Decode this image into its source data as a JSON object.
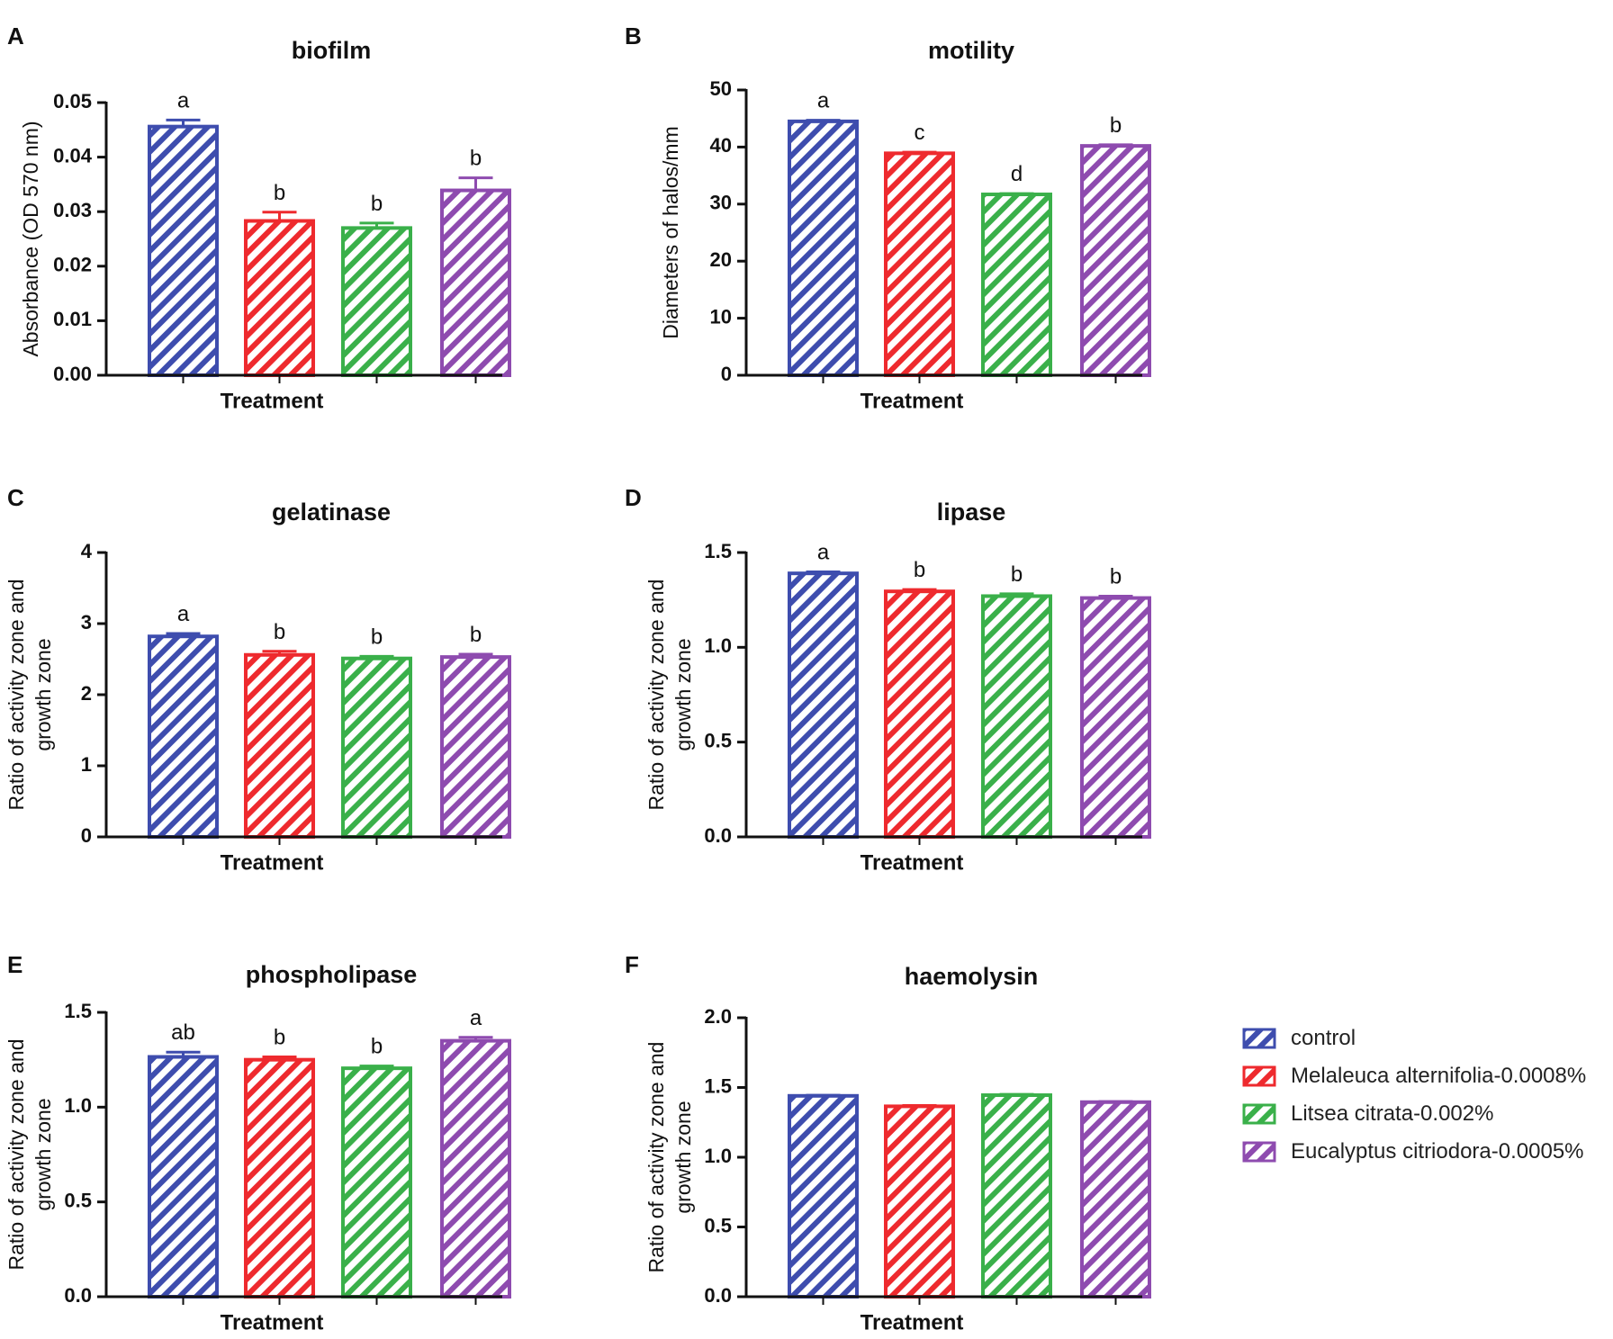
{
  "figure": {
    "treatments": [
      "control",
      "Melaleuca alternifolia-0.0008%",
      "Litsea citrata-0.002%",
      "Eucalyptus citriodora-0.0005%"
    ],
    "colors": [
      "#3E4DAE",
      "#EE2A2E",
      "#3AB04A",
      "#8E4BAF"
    ]
  },
  "legend": {
    "items": [
      {
        "label": "control",
        "color": "#3E4DAE"
      },
      {
        "label": "Melaleuca alternifolia-0.0008%",
        "color": "#EE2A2E"
      },
      {
        "label": "Litsea citrata-0.002%",
        "color": "#3AB04A"
      },
      {
        "label": "Eucalyptus citriodora-0.0005%",
        "color": "#8E4BAF"
      }
    ]
  },
  "chart_data": [
    {
      "panel": "A",
      "type": "bar",
      "title": "biofilm",
      "xlabel": "Treatment",
      "ylabel": "Absorbance (OD 570 nm)",
      "ylim": [
        0,
        0.05
      ],
      "yticks": [
        "0.00",
        "0.01",
        "0.02",
        "0.03",
        "0.04",
        "0.05"
      ],
      "categories": [
        "control",
        "Melaleuca alternifolia-0.0008%",
        "Litsea citrata-0.002%",
        "Eucalyptus citriodora-0.0005%"
      ],
      "values": [
        0.0456,
        0.0283,
        0.027,
        0.0339
      ],
      "errors": [
        0.0012,
        0.0016,
        0.0009,
        0.0023
      ],
      "letters": [
        "a",
        "b",
        "b",
        "b"
      ]
    },
    {
      "panel": "B",
      "type": "bar",
      "title": "motility",
      "xlabel": "Treatment",
      "ylabel": "Diameters of  halos/mm",
      "ylim": [
        0,
        50
      ],
      "yticks": [
        "0",
        "10",
        "20",
        "30",
        "40",
        "50"
      ],
      "categories": [
        "control",
        "Melaleuca alternifolia-0.0008%",
        "Litsea citrata-0.002%",
        "Eucalyptus citriodora-0.0005%"
      ],
      "values": [
        44.5,
        38.9,
        31.7,
        40.2
      ],
      "errors": [
        0.2,
        0.2,
        0.15,
        0.2
      ],
      "letters": [
        "a",
        "c",
        "d",
        "b"
      ]
    },
    {
      "panel": "C",
      "type": "bar",
      "title": "gelatinase",
      "xlabel": "Treatment",
      "ylabel": [
        "Ratio of activity zone and",
        "growth zone"
      ],
      "ylim": [
        0,
        4
      ],
      "yticks": [
        "0",
        "1",
        "2",
        "3",
        "4"
      ],
      "categories": [
        "control",
        "Melaleuca alternifolia-0.0008%",
        "Litsea citrata-0.002%",
        "Eucalyptus citriodora-0.0005%"
      ],
      "values": [
        2.82,
        2.56,
        2.51,
        2.53
      ],
      "errors": [
        0.04,
        0.05,
        0.03,
        0.04
      ],
      "letters": [
        "a",
        "b",
        "b",
        "b"
      ]
    },
    {
      "panel": "D",
      "type": "bar",
      "title": "lipase",
      "xlabel": "Treatment",
      "ylabel": [
        "Ratio of activity zone and",
        "growth zone"
      ],
      "ylim": [
        0,
        1.5
      ],
      "yticks": [
        "0.0",
        "0.5",
        "1.0",
        "1.5"
      ],
      "categories": [
        "control",
        "Melaleuca alternifolia-0.0008%",
        "Litsea citrata-0.002%",
        "Eucalyptus citriodora-0.0005%"
      ],
      "values": [
        1.39,
        1.295,
        1.27,
        1.26
      ],
      "errors": [
        0.008,
        0.01,
        0.012,
        0.01
      ],
      "letters": [
        "a",
        "b",
        "b",
        "b"
      ]
    },
    {
      "panel": "E",
      "type": "bar",
      "title": "phospholipase",
      "xlabel": "Treatment",
      "ylabel": [
        "Ratio of activity zone and",
        "growth zone"
      ],
      "ylim": [
        0,
        1.5
      ],
      "yticks": [
        "0.0",
        "0.5",
        "1.0",
        "1.5"
      ],
      "categories": [
        "control",
        "Melaleuca alternifolia-0.0008%",
        "Litsea citrata-0.002%",
        "Eucalyptus citriodora-0.0005%"
      ],
      "values": [
        1.265,
        1.25,
        1.205,
        1.35
      ],
      "errors": [
        0.025,
        0.015,
        0.012,
        0.018
      ],
      "letters": [
        "ab",
        "b",
        "b",
        "a"
      ]
    },
    {
      "panel": "F",
      "type": "bar",
      "title": "haemolysin",
      "xlabel": "Treatment",
      "ylabel": [
        "Ratio of activity zone and",
        "growth zone"
      ],
      "ylim": [
        0,
        2.0
      ],
      "yticks": [
        "0.0",
        "0.5",
        "1.0",
        "1.5",
        "2.0"
      ],
      "categories": [
        "control",
        "Melaleuca alternifolia-0.0008%",
        "Litsea citrata-0.002%",
        "Eucalyptus citriodora-0.0005%"
      ],
      "values": [
        1.44,
        1.365,
        1.445,
        1.395
      ],
      "errors": [
        0.004,
        0.006,
        0.006,
        0.004
      ],
      "letters": []
    }
  ]
}
